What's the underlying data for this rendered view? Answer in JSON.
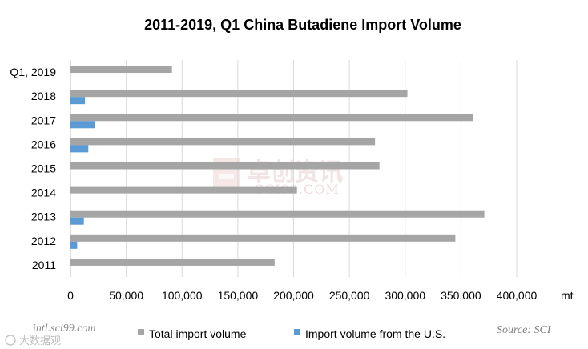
{
  "chart_data": {
    "type": "bar",
    "orientation": "horizontal",
    "title": "2011-2019, Q1 China Butadiene Import Volume",
    "unit": "mt",
    "categories": [
      "Q1, 2019",
      "2018",
      "2017",
      "2016",
      "2015",
      "2014",
      "2013",
      "2012",
      "2011"
    ],
    "series": [
      {
        "name": "Total import volume",
        "color": "#a5a5a5",
        "values": [
          91000,
          302000,
          361000,
          273000,
          277000,
          203000,
          371000,
          345000,
          183000
        ]
      },
      {
        "name": "Import volume from the U.S.",
        "color": "#5b9bd5",
        "values": [
          0,
          13000,
          22000,
          16000,
          0,
          0,
          12000,
          6000,
          0
        ]
      }
    ],
    "xlim": [
      0,
      400000
    ],
    "x_ticks": [
      "0",
      "50,000",
      "100,000",
      "150,000",
      "200,000",
      "250,000",
      "300,000",
      "350,000",
      "400,000"
    ],
    "grid": true,
    "legend": "bottom"
  },
  "footer": {
    "source": "Source: SCI",
    "site": "intl.sci99.com"
  },
  "watermark": {
    "cn": "卓创资讯",
    "en": "SCI99.COM"
  },
  "badge": {
    "text": "大数据观"
  }
}
